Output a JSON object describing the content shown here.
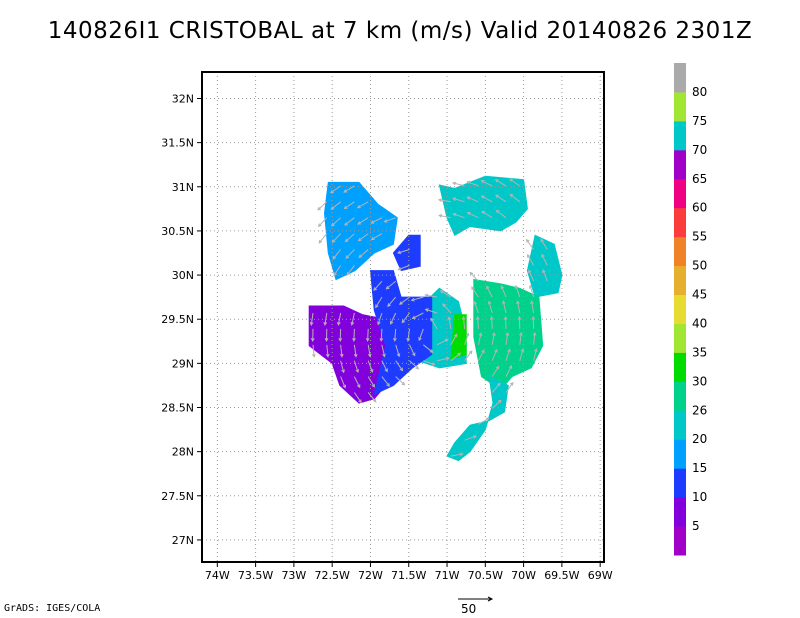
{
  "title": "140826I1 CRISTOBAL at 7 km (m/s) Valid 20140826 2301Z",
  "credit": "GrADS: IGES/COLA",
  "vector_reference_label": "50",
  "colors": {
    "background": "#ffffff",
    "grid": "#9a9a9a",
    "vector": "#b4b4b4",
    "frame": "#000000"
  },
  "chart_data": {
    "type": "heatmap",
    "title": "140826I1 CRISTOBAL at 7 km (m/s) Valid 20140826 2301Z",
    "xlabel": "",
    "ylabel": "",
    "xlim": [
      -74.2,
      -68.95
    ],
    "ylim": [
      26.75,
      32.3
    ],
    "grid": true,
    "xtick_values": [
      -74,
      -73.5,
      -73,
      -72.5,
      -72,
      -71.5,
      -71,
      -70.5,
      -70,
      -69.5,
      -69
    ],
    "xtick_labels": [
      "74W",
      "73.5W",
      "73W",
      "72.5W",
      "72W",
      "71.5W",
      "71W",
      "70.5W",
      "70W",
      "69.5W",
      "69W"
    ],
    "ytick_values": [
      27,
      27.5,
      28,
      28.5,
      29,
      29.5,
      30,
      30.5,
      31,
      31.5,
      32
    ],
    "ytick_labels": [
      "27N",
      "27.5N",
      "28N",
      "28.5N",
      "29N",
      "29.5N",
      "30N",
      "30.5N",
      "31N",
      "31.5N",
      "32N"
    ],
    "colorbar": {
      "labels": [
        "5",
        "10",
        "15",
        "20",
        "26",
        "30",
        "35",
        "40",
        "45",
        "50",
        "55",
        "60",
        "65",
        "70",
        "75",
        "80"
      ],
      "colors": [
        "#a000c8",
        "#8200dc",
        "#1e3cff",
        "#00a0ff",
        "#00c8c8",
        "#00d28c",
        "#00dc00",
        "#a0e632",
        "#e6dc32",
        "#e6af2d",
        "#f08228",
        "#fa3c3c",
        "#f00082",
        "#a000c8",
        "#00c8c8",
        "#a0e632",
        "#aaaaaa"
      ]
    },
    "wind_speed_regions": [
      {
        "name": "northwest band",
        "color": "#00a0ff",
        "polygon": [
          [
            -72.55,
            31.05
          ],
          [
            -72.15,
            31.05
          ],
          [
            -71.9,
            30.8
          ],
          [
            -71.65,
            30.65
          ],
          [
            -71.7,
            30.35
          ],
          [
            -71.95,
            30.25
          ],
          [
            -72.2,
            30.05
          ],
          [
            -72.45,
            29.95
          ],
          [
            -72.55,
            30.25
          ],
          [
            -72.6,
            30.7
          ]
        ]
      },
      {
        "name": "northeast band",
        "color": "#00c8c8",
        "polygon": [
          [
            -71.1,
            31.02
          ],
          [
            -70.9,
            30.98
          ],
          [
            -70.5,
            31.12
          ],
          [
            -70.0,
            31.08
          ],
          [
            -69.95,
            30.75
          ],
          [
            -70.1,
            30.6
          ],
          [
            -70.3,
            30.5
          ],
          [
            -70.7,
            30.55
          ],
          [
            -70.9,
            30.45
          ],
          [
            -71.0,
            30.65
          ]
        ]
      },
      {
        "name": "east arc",
        "color": "#00c8c8",
        "polygon": [
          [
            -69.85,
            30.45
          ],
          [
            -69.6,
            30.35
          ],
          [
            -69.5,
            30.0
          ],
          [
            -69.55,
            29.8
          ],
          [
            -69.85,
            29.75
          ],
          [
            -69.95,
            30.05
          ]
        ]
      },
      {
        "name": "east rainband",
        "color": "#00d28c",
        "polygon": [
          [
            -70.65,
            29.95
          ],
          [
            -70.3,
            29.9
          ],
          [
            -70.05,
            29.85
          ],
          [
            -69.8,
            29.75
          ],
          [
            -69.75,
            29.2
          ],
          [
            -69.9,
            28.95
          ],
          [
            -70.15,
            28.85
          ],
          [
            -70.3,
            28.7
          ],
          [
            -70.55,
            28.85
          ],
          [
            -70.65,
            29.3
          ]
        ]
      },
      {
        "name": "south tail",
        "color": "#00c8c8",
        "polygon": [
          [
            -70.45,
            28.85
          ],
          [
            -70.2,
            28.75
          ],
          [
            -70.25,
            28.45
          ],
          [
            -70.45,
            28.35
          ],
          [
            -70.7,
            28.3
          ],
          [
            -70.9,
            28.1
          ],
          [
            -71.0,
            27.95
          ],
          [
            -70.85,
            27.9
          ],
          [
            -70.7,
            28.0
          ],
          [
            -70.5,
            28.25
          ],
          [
            -70.4,
            28.55
          ]
        ]
      },
      {
        "name": "eyewall",
        "color": "#00c8c8",
        "polygon": [
          [
            -71.1,
            29.85
          ],
          [
            -70.85,
            29.7
          ],
          [
            -70.75,
            29.35
          ],
          [
            -70.75,
            29.0
          ],
          [
            -71.1,
            28.95
          ],
          [
            -71.45,
            29.05
          ],
          [
            -71.55,
            29.3
          ],
          [
            -71.4,
            29.6
          ]
        ]
      },
      {
        "name": "core southwest",
        "color": "#8200dc",
        "polygon": [
          [
            -72.8,
            29.65
          ],
          [
            -72.35,
            29.65
          ],
          [
            -72.1,
            29.55
          ],
          [
            -71.8,
            29.5
          ],
          [
            -71.6,
            29.6
          ],
          [
            -71.3,
            29.55
          ],
          [
            -71.3,
            29.25
          ],
          [
            -71.65,
            29.1
          ],
          [
            -71.7,
            28.85
          ],
          [
            -71.95,
            28.6
          ],
          [
            -72.15,
            28.55
          ],
          [
            -72.4,
            28.75
          ],
          [
            -72.5,
            29.0
          ],
          [
            -72.8,
            29.2
          ]
        ]
      },
      {
        "name": "core east",
        "color": "#1e3cff",
        "polygon": [
          [
            -72.0,
            30.05
          ],
          [
            -71.7,
            30.05
          ],
          [
            -71.6,
            29.75
          ],
          [
            -71.2,
            29.75
          ],
          [
            -71.2,
            29.1
          ],
          [
            -71.45,
            28.95
          ],
          [
            -71.7,
            28.75
          ],
          [
            -71.95,
            28.65
          ],
          [
            -71.8,
            29.2
          ],
          [
            -71.95,
            29.6
          ]
        ]
      },
      {
        "name": "north blob",
        "color": "#1e3cff",
        "polygon": [
          [
            -71.5,
            30.45
          ],
          [
            -71.35,
            30.45
          ],
          [
            -71.35,
            30.1
          ],
          [
            -71.6,
            30.05
          ],
          [
            -71.7,
            30.25
          ]
        ]
      },
      {
        "name": "inner green",
        "color": "#00dc00",
        "polygon": [
          [
            -70.9,
            29.55
          ],
          [
            -70.75,
            29.55
          ],
          [
            -70.75,
            29.1
          ],
          [
            -70.95,
            29.05
          ]
        ]
      }
    ],
    "vector_reference_magnitude": 50
  }
}
